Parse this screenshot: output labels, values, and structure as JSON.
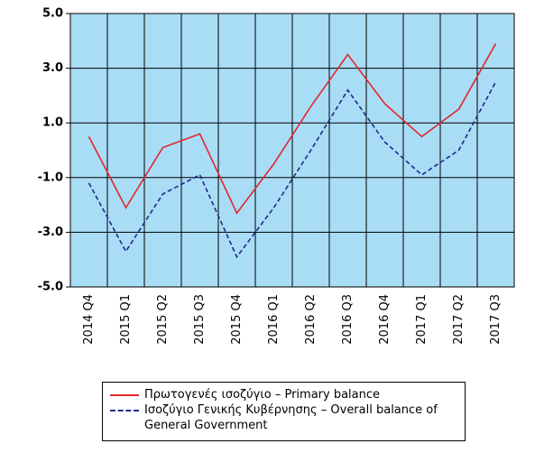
{
  "chart_data": {
    "type": "line",
    "categories": [
      "2014 Q4",
      "2015 Q1",
      "2015 Q2",
      "2015 Q3",
      "2015 Q4",
      "2016 Q1",
      "2016 Q2",
      "2016 Q3",
      "2016 Q4",
      "2017 Q1",
      "2017 Q2",
      "2017 Q3"
    ],
    "series": [
      {
        "name": "Πρωτογενές ισοζύγιο – Primary balance",
        "color": "#e3262d",
        "dash": false,
        "values": [
          0.5,
          -2.1,
          0.1,
          0.6,
          -2.3,
          -0.5,
          1.6,
          3.5,
          1.7,
          0.5,
          1.5,
          3.9
        ]
      },
      {
        "name": "Ισοζύγιο Γενικής Κυβέρνησης – Overall balance of General Government",
        "color": "#1f2a8a",
        "dash": true,
        "values": [
          -1.2,
          -3.7,
          -1.6,
          -0.9,
          -3.9,
          -2.1,
          0.0,
          2.2,
          0.3,
          -0.9,
          0.0,
          2.5
        ]
      }
    ],
    "ylim": [
      -5,
      5
    ],
    "yticks": [
      {
        "value": -5,
        "label": "-5.0"
      },
      {
        "value": -3,
        "label": "-3.0"
      },
      {
        "value": -1,
        "label": "-1.0"
      },
      {
        "value": 1,
        "label": "1.0"
      },
      {
        "value": 3,
        "label": "3.0"
      },
      {
        "value": 5,
        "label": "5.0"
      }
    ],
    "grid": true,
    "background": "#a9dcf5"
  }
}
